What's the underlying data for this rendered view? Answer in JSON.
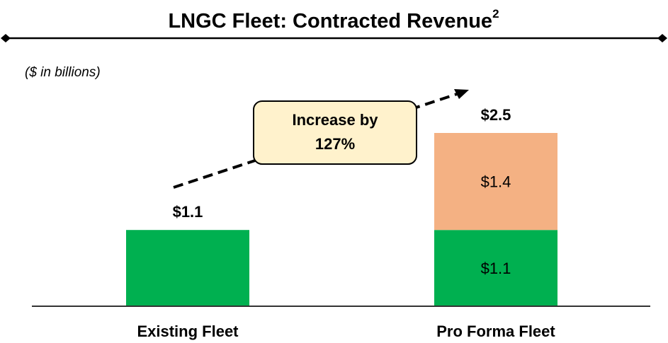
{
  "chart_data": {
    "type": "stacked_bar",
    "title": "LNGC Fleet: Contracted Revenue",
    "title_footnote": "2",
    "subtitle": "($ in billions)",
    "annotation_lines": [
      "Increase by",
      "127%"
    ],
    "categories": [
      "Existing Fleet",
      "Pro Forma Fleet"
    ],
    "series": [
      {
        "color": "#00b050",
        "values": [
          1.1,
          1.1
        ],
        "value_labels": [
          null,
          "$1.1"
        ]
      },
      {
        "color": "#f4b183",
        "values": [
          null,
          1.4
        ],
        "value_labels": [
          null,
          "$1.4"
        ]
      }
    ],
    "totals": [
      1.1,
      2.5
    ],
    "total_labels": [
      "$1.1",
      "$2.5"
    ],
    "ylim": [
      0,
      3
    ]
  }
}
